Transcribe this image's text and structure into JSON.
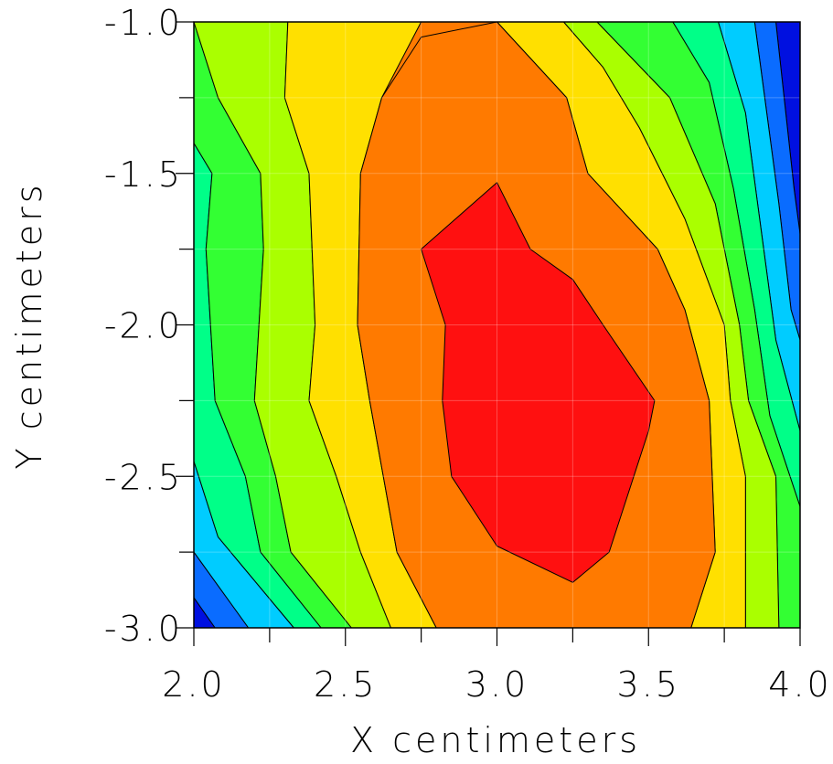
{
  "chart_data": {
    "type": "contour",
    "xlabel": "X centimeters",
    "ylabel": "Y centimeters",
    "xlim": [
      2.0,
      4.0
    ],
    "ylim": [
      -3.0,
      -1.0
    ],
    "x_ticks": [
      "2.0",
      "2.5",
      "3.0",
      "3.5",
      "4.0"
    ],
    "y_ticks": [
      "-1.0",
      "-1.5",
      "-2.0",
      "-2.5",
      "-3.0"
    ],
    "x_tick_values": [
      2.0,
      2.5,
      3.0,
      3.5,
      4.0
    ],
    "y_tick_values": [
      -1.0,
      -1.5,
      -2.0,
      -2.5,
      -3.0
    ],
    "grid": true,
    "colorscale": [
      "#0010e0",
      "#0a6cff",
      "#00ccff",
      "#00ff88",
      "#33ff33",
      "#aaff00",
      "#ffe000",
      "#ff7a00",
      "#ff1010"
    ],
    "regions": [
      {
        "level": 0,
        "color": "#0010e0",
        "points": [
          [
            3.92,
            -1
          ],
          [
            4,
            -1
          ],
          [
            4,
            -1.7
          ],
          [
            3.98,
            -1.55
          ]
        ]
      },
      {
        "level": 0,
        "color": "#0010e0",
        "points": [
          [
            2,
            -2.9
          ],
          [
            2.07,
            -3
          ],
          [
            2,
            -3
          ]
        ]
      },
      {
        "level": 1,
        "color": "#0a6cff",
        "points": [
          [
            3.85,
            -1
          ],
          [
            3.92,
            -1
          ],
          [
            3.98,
            -1.55
          ],
          [
            4,
            -1.7
          ],
          [
            4,
            -2.05
          ],
          [
            3.97,
            -1.95
          ],
          [
            3.93,
            -1.6
          ]
        ]
      },
      {
        "level": 1,
        "color": "#0a6cff",
        "points": [
          [
            2,
            -2.75
          ],
          [
            2.18,
            -3
          ],
          [
            2.07,
            -3
          ],
          [
            2,
            -2.9
          ]
        ]
      },
      {
        "level": 2,
        "color": "#00ccff",
        "points": [
          [
            3.73,
            -1
          ],
          [
            3.85,
            -1
          ],
          [
            3.93,
            -1.6
          ],
          [
            3.97,
            -1.95
          ],
          [
            4,
            -2.05
          ],
          [
            4,
            -2.35
          ],
          [
            3.92,
            -2.05
          ],
          [
            3.88,
            -1.75
          ],
          [
            3.82,
            -1.3
          ]
        ]
      },
      {
        "level": 2,
        "color": "#00ccff",
        "points": [
          [
            2,
            -2.45
          ],
          [
            2.08,
            -2.7
          ],
          [
            2.33,
            -3
          ],
          [
            2.18,
            -3
          ],
          [
            2,
            -2.75
          ]
        ]
      },
      {
        "level": 3,
        "color": "#00ff88",
        "points": [
          [
            3.58,
            -1
          ],
          [
            3.73,
            -1
          ],
          [
            3.82,
            -1.3
          ],
          [
            3.88,
            -1.75
          ],
          [
            3.92,
            -2.05
          ],
          [
            4,
            -2.35
          ],
          [
            4,
            -2.6
          ],
          [
            3.9,
            -2.3
          ],
          [
            3.85,
            -1.95
          ],
          [
            3.78,
            -1.55
          ],
          [
            3.7,
            -1.2
          ]
        ]
      },
      {
        "level": 3,
        "color": "#00ff88",
        "points": [
          [
            2,
            -1.4
          ],
          [
            2.06,
            -1.5
          ],
          [
            2.04,
            -1.75
          ],
          [
            2.07,
            -2.25
          ],
          [
            2.17,
            -2.5
          ],
          [
            2.22,
            -2.75
          ],
          [
            2.42,
            -3
          ],
          [
            2.33,
            -3
          ],
          [
            2.08,
            -2.7
          ],
          [
            2,
            -2.45
          ]
        ]
      },
      {
        "level": 4,
        "color": "#33ff33",
        "points": [
          [
            3.33,
            -1
          ],
          [
            3.58,
            -1
          ],
          [
            3.7,
            -1.2
          ],
          [
            3.78,
            -1.55
          ],
          [
            3.85,
            -1.95
          ],
          [
            3.9,
            -2.3
          ],
          [
            4,
            -2.6
          ],
          [
            4,
            -3
          ],
          [
            3.93,
            -3
          ],
          [
            3.92,
            -2.5
          ],
          [
            3.83,
            -2.25
          ],
          [
            3.8,
            -2
          ],
          [
            3.72,
            -1.6
          ],
          [
            3.57,
            -1.25
          ]
        ]
      },
      {
        "level": 4,
        "color": "#33ff33",
        "points": [
          [
            2,
            -1
          ],
          [
            2.08,
            -1.25
          ],
          [
            2.22,
            -1.5
          ],
          [
            2.23,
            -1.75
          ],
          [
            2.2,
            -2.25
          ],
          [
            2.27,
            -2.5
          ],
          [
            2.32,
            -2.75
          ],
          [
            2.52,
            -3
          ],
          [
            2.42,
            -3
          ],
          [
            2.22,
            -2.75
          ],
          [
            2.17,
            -2.5
          ],
          [
            2.07,
            -2.25
          ],
          [
            2.04,
            -1.75
          ],
          [
            2.06,
            -1.5
          ],
          [
            2,
            -1.4
          ]
        ]
      },
      {
        "level": 5,
        "color": "#aaff00",
        "points": [
          [
            3.22,
            -1
          ],
          [
            3.33,
            -1
          ],
          [
            3.57,
            -1.25
          ],
          [
            3.72,
            -1.6
          ],
          [
            3.8,
            -2
          ],
          [
            3.83,
            -2.25
          ],
          [
            3.92,
            -2.5
          ],
          [
            3.93,
            -3
          ],
          [
            3.82,
            -3
          ],
          [
            3.82,
            -2.5
          ],
          [
            3.77,
            -2.25
          ],
          [
            3.75,
            -2
          ],
          [
            3.62,
            -1.65
          ],
          [
            3.47,
            -1.35
          ],
          [
            3.35,
            -1.15
          ]
        ]
      },
      {
        "level": 5,
        "color": "#aaff00",
        "points": [
          [
            2,
            -1
          ],
          [
            2.31,
            -1
          ],
          [
            2.3,
            -1.25
          ],
          [
            2.38,
            -1.5
          ],
          [
            2.4,
            -2
          ],
          [
            2.38,
            -2.25
          ],
          [
            2.47,
            -2.5
          ],
          [
            2.55,
            -2.75
          ],
          [
            2.65,
            -3
          ],
          [
            2.52,
            -3
          ],
          [
            2.32,
            -2.75
          ],
          [
            2.27,
            -2.5
          ],
          [
            2.2,
            -2.25
          ],
          [
            2.23,
            -1.75
          ],
          [
            2.22,
            -1.5
          ],
          [
            2.08,
            -1.25
          ]
        ]
      },
      {
        "level": 6,
        "color": "#ffe000",
        "points": [
          [
            2.31,
            -1
          ],
          [
            2.75,
            -1
          ],
          [
            2.62,
            -1.25
          ],
          [
            2.55,
            -1.5
          ],
          [
            2.54,
            -2
          ],
          [
            2.58,
            -2.25
          ],
          [
            2.67,
            -2.75
          ],
          [
            2.8,
            -3
          ],
          [
            2.65,
            -3
          ],
          [
            2.55,
            -2.75
          ],
          [
            2.47,
            -2.5
          ],
          [
            2.38,
            -2.25
          ],
          [
            2.4,
            -2
          ],
          [
            2.38,
            -1.5
          ],
          [
            2.3,
            -1.25
          ]
        ]
      },
      {
        "level": 6,
        "color": "#ffe000",
        "points": [
          [
            3.0,
            -1
          ],
          [
            3.22,
            -1
          ],
          [
            3.35,
            -1.15
          ],
          [
            3.47,
            -1.35
          ],
          [
            3.62,
            -1.65
          ],
          [
            3.75,
            -2
          ],
          [
            3.77,
            -2.25
          ],
          [
            3.82,
            -2.5
          ],
          [
            3.82,
            -3
          ],
          [
            3.64,
            -3
          ],
          [
            3.72,
            -2.75
          ],
          [
            3.71,
            -2.5
          ],
          [
            3.7,
            -2.25
          ],
          [
            3.62,
            -1.95
          ],
          [
            3.53,
            -1.75
          ],
          [
            3.3,
            -1.5
          ],
          [
            3.23,
            -1.25
          ]
        ]
      },
      {
        "level": 7,
        "color": "#ff7a00",
        "points": [
          [
            2.75,
            -1.05
          ],
          [
            3.0,
            -1
          ],
          [
            3.23,
            -1.25
          ],
          [
            3.3,
            -1.5
          ],
          [
            3.53,
            -1.75
          ],
          [
            3.62,
            -1.95
          ],
          [
            3.7,
            -2.25
          ],
          [
            3.71,
            -2.5
          ],
          [
            3.72,
            -2.75
          ],
          [
            3.64,
            -3
          ],
          [
            2.8,
            -3
          ],
          [
            2.67,
            -2.75
          ],
          [
            2.58,
            -2.25
          ],
          [
            2.54,
            -2
          ],
          [
            2.55,
            -1.5
          ],
          [
            2.62,
            -1.25
          ]
        ]
      },
      {
        "level": 8,
        "color": "#ff1010",
        "points": [
          [
            3.0,
            -1.53
          ],
          [
            3.11,
            -1.75
          ],
          [
            3.25,
            -1.85
          ],
          [
            3.35,
            -2.0
          ],
          [
            3.52,
            -2.25
          ],
          [
            3.5,
            -2.35
          ],
          [
            3.37,
            -2.75
          ],
          [
            3.25,
            -2.85
          ],
          [
            3.0,
            -2.73
          ],
          [
            2.85,
            -2.5
          ],
          [
            2.82,
            -2.25
          ],
          [
            2.83,
            -2.0
          ],
          [
            2.75,
            -1.75
          ]
        ]
      }
    ]
  }
}
